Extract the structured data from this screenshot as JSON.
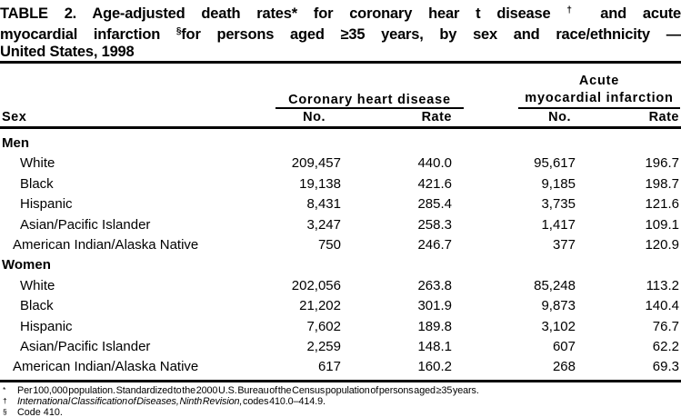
{
  "title": {
    "line1": {
      "pre": "TABLE 2. Age-adjusted death rates* for coronary hear t disease",
      "sup": "†",
      "post": "and acute"
    },
    "line2": {
      "pre": "myocardial infarction",
      "sup": "§",
      "post": "for persons aged ≥35 years, by sex and race/ethnicity —"
    },
    "line3": "United States, 1998"
  },
  "header": {
    "row_label": "Sex",
    "groups": [
      {
        "label": "Coronary heart disease",
        "cols": [
          "No.",
          "Rate"
        ]
      },
      {
        "label_line1": "Acute",
        "label_line2": "myocardial infarction",
        "cols": [
          "No.",
          "Rate"
        ]
      }
    ]
  },
  "rows": [
    {
      "label": "Men"
    },
    {
      "label": "White",
      "chd_no": "209,457",
      "chd_rate": "440.0",
      "ami_no": "95,617",
      "ami_rate": "196.7"
    },
    {
      "label": "Black",
      "chd_no": "19,138",
      "chd_rate": "421.6",
      "ami_no": "9,185",
      "ami_rate": "198.7"
    },
    {
      "label": "Hispanic",
      "chd_no": "8,431",
      "chd_rate": "285.4",
      "ami_no": "3,735",
      "ami_rate": "121.6"
    },
    {
      "label": "Asian/Pacific Islander",
      "chd_no": "3,247",
      "chd_rate": "258.3",
      "ami_no": "1,417",
      "ami_rate": "109.1"
    },
    {
      "label": "American Indian/Alaska Native",
      "chd_no": "750",
      "chd_rate": "246.7",
      "ami_no": "377",
      "ami_rate": "120.9"
    },
    {
      "label": "Women"
    },
    {
      "label": "White",
      "chd_no": "202,056",
      "chd_rate": "263.8",
      "ami_no": "85,248",
      "ami_rate": "113.2"
    },
    {
      "label": "Black",
      "chd_no": "21,202",
      "chd_rate": "301.9",
      "ami_no": "9,873",
      "ami_rate": "140.4"
    },
    {
      "label": "Hispanic",
      "chd_no": "7,602",
      "chd_rate": "189.8",
      "ami_no": "3,102",
      "ami_rate": "76.7"
    },
    {
      "label": "Asian/Pacific Islander",
      "chd_no": "2,259",
      "chd_rate": "148.1",
      "ami_no": "607",
      "ami_rate": "62.2"
    },
    {
      "label": "American Indian/Alaska Native",
      "chd_no": "617",
      "chd_rate": "160.2",
      "ami_no": "268",
      "ami_rate": "69.3"
    }
  ],
  "footnotes": [
    {
      "symbol": "*",
      "text": "Per 100,000 population. Standardized to the 2000 U.S. Bureau of the Census population of persons aged ≥35 years."
    },
    {
      "symbol": "†",
      "italic": "International Classification of Diseases, Ninth Revision,",
      "text": " codes 410.0–414.9."
    },
    {
      "symbol": "§",
      "text": "Code 410."
    }
  ]
}
